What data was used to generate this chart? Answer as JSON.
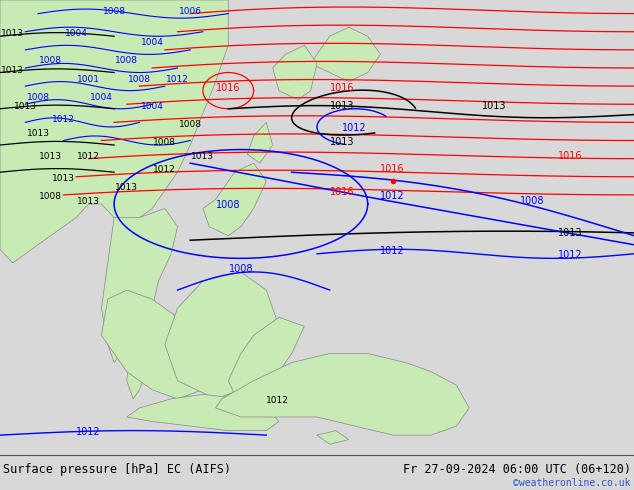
{
  "title_left": "Surface pressure [hPa] EC (AIFS)",
  "title_right": "Fr 27-09-2024 06:00 UTC (06+120)",
  "copyright": "©weatheronline.co.uk",
  "ocean_color": "#d8d8d8",
  "land_color": "#c8eab4",
  "coast_color": "#888888",
  "title_bar_color": "#d8d8d8",
  "title_color": "#000000",
  "copyright_color": "#3355cc",
  "fig_width": 6.34,
  "fig_height": 4.9,
  "title_fontsize": 8.5,
  "label_fontsize": 7.0
}
